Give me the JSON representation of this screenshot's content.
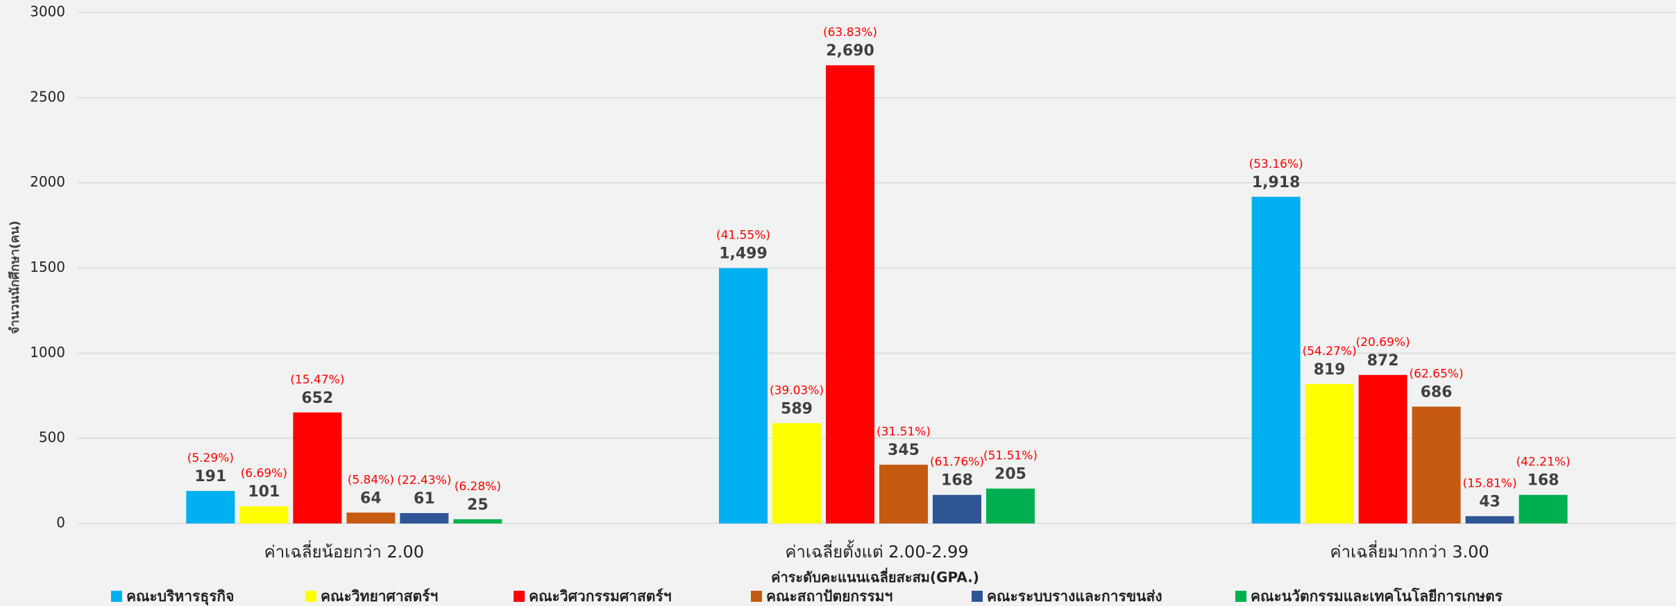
{
  "chart_data": {
    "type": "bar",
    "y_label": "จำนวนนักศึกษา(คน)",
    "x_label": "ค่าระดับคะแนนเฉลี่ยสะสม(GPA.)",
    "categories": [
      "ค่าเฉลี่ยน้อยกว่า 2.00",
      "ค่าเฉลี่ยตั้งแต่ 2.00-2.99",
      "ค่าเฉลี่ยมากกว่า 3.00"
    ],
    "series": [
      {
        "name": "คณะบริหารธุรกิจ",
        "color": "#00b0f0",
        "values": [
          191,
          1499,
          1918
        ],
        "value_labels": [
          "191",
          "1,499",
          "1,918"
        ],
        "percent_labels": [
          "(5.29%)",
          "(41.55%)",
          "(53.16%)"
        ]
      },
      {
        "name": "คณะวิทยาศาสตร์ฯ",
        "color": "#ffff00",
        "values": [
          101,
          589,
          819
        ],
        "percent_labels": [
          "(6.69%)",
          "(39.03%)",
          "(54.27%)"
        ]
      },
      {
        "name": "คณะวิศวกรรมศาสตร์ฯ",
        "color": "#ff0000",
        "values": [
          652,
          2690,
          872
        ],
        "value_labels": [
          "652",
          "2,690",
          "872"
        ],
        "percent_labels": [
          "(15.47%)",
          "(63.83%)",
          "(20.69%)"
        ]
      },
      {
        "name": "คณะสถาปัตยกรรมฯ",
        "color": "#c55a11",
        "values": [
          64,
          345,
          686
        ],
        "percent_labels": [
          "(5.84%)",
          "(31.51%)",
          "(62.65%)"
        ]
      },
      {
        "name": "คณะระบบรางและการขนส่ง",
        "color": "#2f5597",
        "values": [
          61,
          168,
          43
        ],
        "percent_labels": [
          "(22.43%)",
          "(61.76%)",
          "(15.81%)"
        ]
      },
      {
        "name": "คณะนวัตกรรมและเทคโนโลยีการเกษตร",
        "color": "#00b050",
        "values": [
          25,
          205,
          168
        ],
        "percent_labels": [
          "(6.28%)",
          "(51.51%)",
          "(42.21%)"
        ]
      }
    ],
    "ylim": [
      0,
      3000
    ],
    "yticks": [
      0,
      500,
      1000,
      1500,
      2000,
      2500,
      3000
    ],
    "grid": true,
    "legend": "bottom"
  }
}
